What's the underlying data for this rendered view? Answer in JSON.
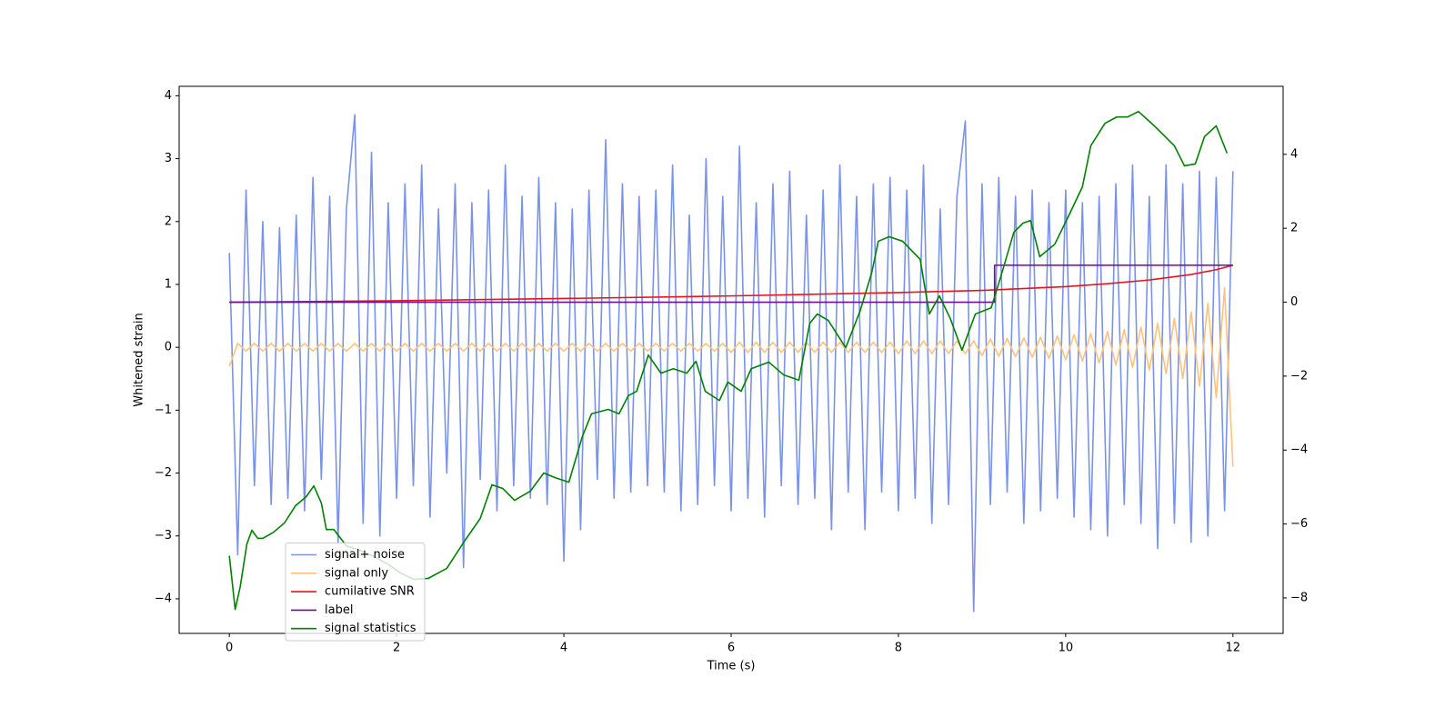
{
  "chart_data": {
    "type": "line",
    "xlabel": "Time (s)",
    "ylabel": "Whitened strain",
    "xlim": [
      -0.6,
      12.6
    ],
    "xticks": [
      0,
      2,
      4,
      6,
      8,
      10,
      12
    ],
    "ylim": [
      -4.55,
      4.15
    ],
    "yticks": [
      {
        "value": -4,
        "label": "−4"
      },
      {
        "value": -3,
        "label": "−3"
      },
      {
        "value": -2,
        "label": "−2"
      },
      {
        "value": -1,
        "label": "−1"
      },
      0,
      1,
      2,
      3,
      4
    ],
    "y2lim": [
      -8.96,
      5.84
    ],
    "y2ticks": [
      {
        "value": -8,
        "label": "−8"
      },
      {
        "value": -6,
        "label": "−6"
      },
      {
        "value": -4,
        "label": "−4"
      },
      {
        "value": -2,
        "label": "−2"
      },
      0,
      2,
      4
    ],
    "legend": "lower left",
    "x": [
      0,
      0.1,
      0.2,
      0.3,
      0.4,
      0.5,
      0.6,
      0.7,
      0.8,
      0.9,
      1,
      1.1,
      1.2,
      1.3,
      1.4,
      1.5,
      1.6,
      1.7,
      1.8,
      1.9,
      2,
      2.1,
      2.2,
      2.3,
      2.4,
      2.5,
      2.6,
      2.7,
      2.8,
      2.9,
      3,
      3.1,
      3.2,
      3.3,
      3.4,
      3.5,
      3.6,
      3.7,
      3.8,
      3.9,
      4,
      4.1,
      4.2,
      4.3,
      4.4,
      4.5,
      4.6,
      4.7,
      4.8,
      4.9,
      5,
      5.1,
      5.2,
      5.3,
      5.4,
      5.5,
      5.6,
      5.7,
      5.8,
      5.9,
      6,
      6.1,
      6.2,
      6.3,
      6.4,
      6.5,
      6.6,
      6.7,
      6.8,
      6.9,
      7,
      7.1,
      7.2,
      7.3,
      7.4,
      7.5,
      7.6,
      7.7,
      7.8,
      7.9,
      8,
      8.1,
      8.2,
      8.3,
      8.4,
      8.5,
      8.6,
      8.7,
      8.8,
      8.9,
      9,
      9.1,
      9.2,
      9.3,
      9.4,
      9.5,
      9.6,
      9.7,
      9.8,
      9.9,
      10,
      10.1,
      10.2,
      10.3,
      10.4,
      10.5,
      10.6,
      10.7,
      10.8,
      10.9,
      11,
      11.1,
      11.2,
      11.3,
      11.4,
      11.5,
      11.6,
      11.7,
      11.8,
      11.9,
      12
    ],
    "series": [
      {
        "name": "signal+ noise",
        "color": "#7a93e8",
        "values": [
          1.5,
          -3.3,
          2.5,
          -2.2,
          2.0,
          -2.5,
          1.9,
          -2.4,
          2.1,
          -2.6,
          2.7,
          -2.1,
          2.4,
          -3.1,
          2.2,
          3.7,
          -2.8,
          3.1,
          -3.0,
          2.3,
          -2.4,
          2.6,
          -2.2,
          2.9,
          -2.7,
          2.2,
          -2.0,
          2.6,
          -3.5,
          2.3,
          -2.1,
          2.5,
          -2.6,
          2.9,
          -2.2,
          2.4,
          -2.4,
          2.7,
          -2.5,
          2.3,
          -3.4,
          2.2,
          -2.9,
          2.5,
          -2.1,
          3.3,
          -2.4,
          2.6,
          -2.3,
          2.4,
          -2.2,
          2.5,
          -2.3,
          2.9,
          -2.6,
          2.1,
          -2.5,
          3.0,
          -2.2,
          2.4,
          -2.6,
          3.2,
          -2.4,
          2.3,
          -2.7,
          2.6,
          -2.2,
          2.8,
          -2.5,
          2.1,
          -2.4,
          2.5,
          -2.9,
          2.9,
          -2.3,
          2.4,
          -2.9,
          2.6,
          -2.3,
          2.7,
          -2.6,
          2.5,
          -2.4,
          2.9,
          -2.8,
          2.2,
          -2.5,
          2.4,
          3.6,
          -4.2,
          2.6,
          -2.5,
          2.7,
          -2.3,
          2.4,
          -2.8,
          2.5,
          -2.6,
          2.3,
          -2.4,
          2.5,
          -2.7,
          2.3,
          -2.9,
          2.4,
          -3.0,
          2.6,
          -2.5,
          2.9,
          -2.8,
          2.4,
          -3.2,
          2.9,
          -2.8,
          2.6,
          -3.1,
          2.8,
          -3.0,
          2.7,
          -2.6,
          2.8
        ]
      },
      {
        "name": "signal only",
        "color": "#ffc27a",
        "values": [
          -0.3,
          0.06,
          -0.06,
          0.06,
          -0.06,
          0.06,
          -0.06,
          0.06,
          -0.06,
          0.06,
          -0.06,
          0.06,
          -0.06,
          0.06,
          -0.06,
          0.06,
          -0.06,
          0.06,
          -0.06,
          0.06,
          -0.06,
          0.06,
          -0.06,
          0.06,
          -0.06,
          0.06,
          -0.06,
          0.06,
          -0.06,
          0.06,
          -0.06,
          0.06,
          -0.06,
          0.06,
          -0.06,
          0.06,
          -0.06,
          0.06,
          -0.06,
          0.06,
          -0.06,
          0.06,
          -0.06,
          0.06,
          -0.06,
          0.06,
          -0.06,
          0.06,
          -0.06,
          0.06,
          -0.06,
          0.06,
          -0.06,
          0.06,
          -0.06,
          0.06,
          -0.06,
          0.06,
          -0.06,
          0.06,
          -0.08,
          0.08,
          -0.08,
          0.08,
          -0.08,
          0.08,
          -0.08,
          0.08,
          -0.08,
          0.08,
          -0.08,
          0.08,
          -0.08,
          0.08,
          -0.08,
          0.08,
          -0.08,
          0.08,
          -0.08,
          0.08,
          -0.1,
          0.1,
          -0.1,
          0.1,
          -0.1,
          0.1,
          -0.1,
          0.1,
          -0.1,
          0.1,
          -0.13,
          0.13,
          -0.14,
          0.14,
          -0.15,
          0.15,
          -0.16,
          0.16,
          -0.18,
          0.18,
          -0.2,
          0.2,
          -0.22,
          0.22,
          -0.25,
          0.25,
          -0.28,
          0.28,
          -0.32,
          0.32,
          -0.36,
          0.38,
          -0.42,
          0.46,
          -0.5,
          0.56,
          -0.62,
          0.7,
          -0.8,
          0.95,
          -1.9
        ]
      },
      {
        "name": "cumilative SNR",
        "color": "#e8141c",
        "axis": "y2",
        "x": [
          0,
          2,
          4,
          6,
          8,
          9,
          10,
          10.5,
          11,
          11.5,
          11.8,
          12
        ],
        "values": [
          0,
          0.04,
          0.1,
          0.17,
          0.26,
          0.32,
          0.42,
          0.5,
          0.6,
          0.75,
          0.88,
          1.0
        ]
      },
      {
        "name": "label",
        "color": "#6a0f8e",
        "axis": "y2",
        "x": [
          0,
          9.15,
          9.15,
          12
        ],
        "values": [
          0,
          0,
          1,
          1
        ]
      },
      {
        "name": "signal statistics",
        "color": "#008000",
        "axis": "y2",
        "x": [
          0,
          0.07,
          0.13,
          0.21,
          0.27,
          0.34,
          0.4,
          0.53,
          0.66,
          0.79,
          0.92,
          1.01,
          1.1,
          1.16,
          1.25,
          1.4,
          1.56,
          1.73,
          1.89,
          2.05,
          2.21,
          2.38,
          2.6,
          2.81,
          3.0,
          3.14,
          3.27,
          3.41,
          3.6,
          3.76,
          3.9,
          4.06,
          4.22,
          4.33,
          4.53,
          4.66,
          4.77,
          4.87,
          5.01,
          5.16,
          5.31,
          5.47,
          5.58,
          5.69,
          5.86,
          5.96,
          6.12,
          6.24,
          6.45,
          6.63,
          6.81,
          6.94,
          7.03,
          7.16,
          7.37,
          7.54,
          7.68,
          7.76,
          7.89,
          8.05,
          8.26,
          8.37,
          8.49,
          8.62,
          8.76,
          8.92,
          9.11,
          9.22,
          9.38,
          9.49,
          9.58,
          9.69,
          9.87,
          10.03,
          10.2,
          10.3,
          10.47,
          10.61,
          10.74,
          10.87,
          11.06,
          11.3,
          11.42,
          11.55,
          11.66,
          11.8,
          11.93
        ],
        "values": [
          -6.86,
          -8.31,
          -7.7,
          -6.54,
          -6.17,
          -6.39,
          -6.39,
          -6.22,
          -5.97,
          -5.51,
          -5.26,
          -4.97,
          -5.43,
          -6.15,
          -6.15,
          -6.59,
          -6.71,
          -6.88,
          -7.08,
          -7.33,
          -7.5,
          -7.47,
          -7.2,
          -6.47,
          -5.85,
          -4.94,
          -5.04,
          -5.36,
          -5.11,
          -4.62,
          -4.75,
          -4.87,
          -3.64,
          -3.02,
          -2.9,
          -3.02,
          -2.53,
          -2.41,
          -1.43,
          -1.92,
          -1.8,
          -1.92,
          -1.6,
          -2.41,
          -2.66,
          -2.16,
          -2.41,
          -1.8,
          -1.62,
          -1.97,
          -2.11,
          -0.57,
          -0.32,
          -0.49,
          -1.23,
          -0.25,
          0.79,
          1.65,
          1.77,
          1.65,
          1.16,
          -0.32,
          0.17,
          -0.44,
          -1.3,
          -0.32,
          -0.15,
          0.66,
          1.89,
          2.14,
          2.21,
          1.23,
          1.57,
          2.31,
          3.12,
          4.23,
          4.84,
          5.01,
          5.01,
          5.16,
          4.77,
          4.23,
          3.69,
          3.74,
          4.48,
          4.77,
          4.03
        ]
      }
    ]
  }
}
